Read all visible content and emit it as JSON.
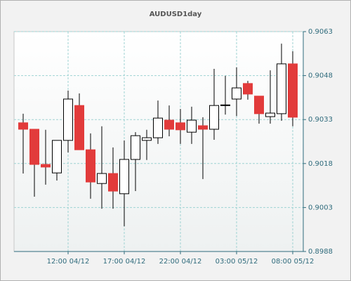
{
  "chart_data": {
    "type": "candlestick",
    "title": "AUDUSD1day",
    "categories": [
      null,
      null,
      null,
      null,
      "12:00 04/12",
      null,
      null,
      null,
      null,
      "17:00 04/12",
      null,
      null,
      null,
      null,
      "22:00 04/12",
      null,
      null,
      null,
      null,
      "03:00 05/12",
      null,
      null,
      null,
      null,
      "08:00 05/12"
    ],
    "open": [
      0.90319,
      0.90297,
      0.90177,
      0.90148,
      0.90259,
      0.90378,
      0.90227,
      0.90112,
      0.90146,
      0.90077,
      0.90194,
      0.90259,
      0.90268,
      0.90328,
      0.90319,
      0.90287,
      0.90309,
      0.90297,
      0.90378,
      0.904,
      0.90453,
      0.9041,
      0.9034,
      0.9035,
      0.9052
    ],
    "high": [
      0.9035,
      0.90297,
      0.90295,
      0.90259,
      0.90429,
      0.90419,
      0.90283,
      0.90307,
      0.90235,
      0.90259,
      0.90287,
      0.90295,
      0.90395,
      0.90378,
      0.90366,
      0.90374,
      0.90338,
      0.90503,
      0.90479,
      0.90508,
      0.90462,
      0.9041,
      0.90498,
      0.90589,
      0.90563
    ],
    "low": [
      0.90146,
      0.90067,
      0.90108,
      0.90122,
      0.90218,
      0.90227,
      0.9006,
      0.90026,
      0.90026,
      0.89966,
      0.90086,
      0.90192,
      0.90247,
      0.90273,
      0.90247,
      0.90247,
      0.90127,
      0.90261,
      0.90347,
      0.90342,
      0.90398,
      0.90316,
      0.90316,
      0.90326,
      0.90307
    ],
    "close": [
      0.90297,
      0.90177,
      0.90168,
      0.90259,
      0.904,
      0.90227,
      0.90117,
      0.90146,
      0.90086,
      0.90194,
      0.90275,
      0.90268,
      0.90335,
      0.90297,
      0.90295,
      0.90328,
      0.90297,
      0.90378,
      0.9038,
      0.90438,
      0.90417,
      0.9035,
      0.90352,
      0.9052,
      0.90338
    ],
    "up_color": "#ffffff",
    "down_color": "#e23b3b",
    "ylim": [
      0.8988,
      0.9063
    ],
    "yticks": [
      0.8988,
      0.9003,
      0.9018,
      0.9033,
      0.9048,
      0.9063
    ],
    "y_axis_side": "right",
    "grid": true
  }
}
